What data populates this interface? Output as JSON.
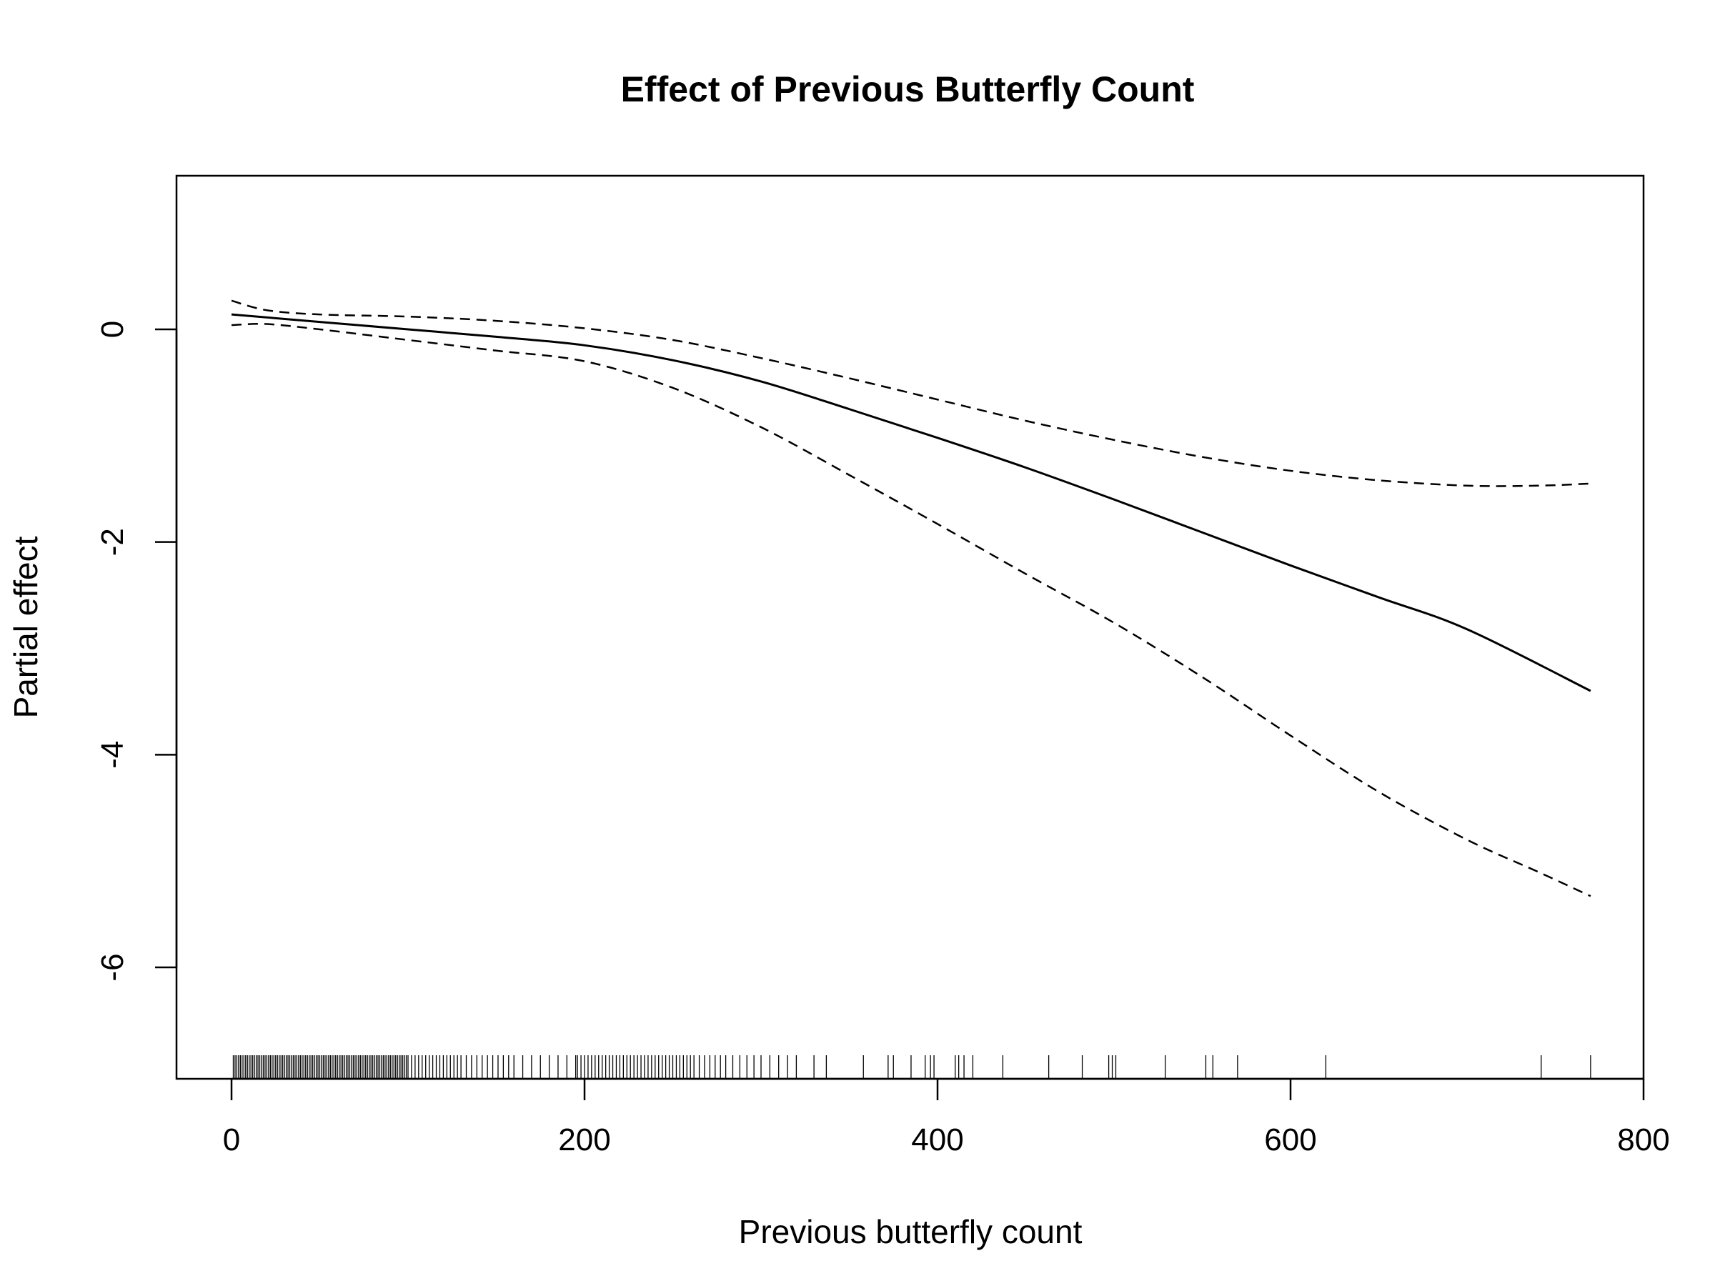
{
  "chart_data": {
    "type": "line",
    "title": "Effect of Previous Butterfly Count",
    "xlabel": "Previous butterfly count",
    "ylabel": "Partial effect",
    "xlim": [
      -30,
      800
    ],
    "ylim": [
      -7,
      1.3
    ],
    "xticks": [
      0,
      200,
      400,
      600,
      800
    ],
    "yticks": [
      0,
      -2,
      -4,
      -6
    ],
    "grid": false,
    "series": [
      {
        "role": "estimate",
        "style": "solid",
        "x": [
          0,
          50,
          100,
          150,
          200,
          250,
          300,
          350,
          400,
          450,
          500,
          550,
          600,
          650,
          700,
          770
        ],
        "y": [
          0.14,
          0.07,
          0.0,
          -0.07,
          -0.15,
          -0.29,
          -0.49,
          -0.75,
          -1.02,
          -1.3,
          -1.6,
          -1.91,
          -2.22,
          -2.52,
          -2.82,
          -3.4
        ]
      },
      {
        "role": "upper bound",
        "style": "dashed",
        "x": [
          0,
          20,
          50,
          100,
          150,
          200,
          250,
          300,
          350,
          400,
          450,
          500,
          550,
          600,
          650,
          700,
          740,
          770
        ],
        "y": [
          0.27,
          0.18,
          0.14,
          0.12,
          0.08,
          0.01,
          -0.1,
          -0.27,
          -0.46,
          -0.66,
          -0.86,
          -1.04,
          -1.2,
          -1.33,
          -1.42,
          -1.47,
          -1.47,
          -1.45
        ]
      },
      {
        "role": "lower bound",
        "style": "dashed",
        "x": [
          0,
          20,
          50,
          100,
          150,
          200,
          250,
          300,
          350,
          400,
          450,
          500,
          550,
          600,
          650,
          700,
          740,
          770
        ],
        "y": [
          0.04,
          0.05,
          0.0,
          -0.1,
          -0.2,
          -0.3,
          -0.55,
          -0.92,
          -1.37,
          -1.83,
          -2.3,
          -2.76,
          -3.27,
          -3.82,
          -4.35,
          -4.8,
          -5.1,
          -5.33
        ]
      }
    ],
    "rug_x": [
      1,
      2,
      3,
      4,
      5,
      6,
      7,
      8,
      9,
      10,
      11,
      12,
      13,
      14,
      15,
      16,
      17,
      18,
      19,
      20,
      21,
      22,
      23,
      24,
      25,
      26,
      27,
      28,
      29,
      30,
      31,
      32,
      33,
      34,
      35,
      36,
      37,
      38,
      39,
      40,
      41,
      42,
      43,
      44,
      45,
      46,
      47,
      48,
      49,
      50,
      51,
      52,
      53,
      54,
      55,
      56,
      57,
      58,
      59,
      60,
      61,
      62,
      63,
      64,
      65,
      66,
      67,
      68,
      69,
      70,
      71,
      72,
      73,
      74,
      75,
      76,
      77,
      78,
      79,
      80,
      81,
      82,
      83,
      84,
      85,
      86,
      87,
      88,
      89,
      90,
      91,
      92,
      93,
      94,
      95,
      96,
      97,
      98,
      99,
      100,
      102,
      104,
      106,
      108,
      110,
      112,
      114,
      116,
      118,
      120,
      122,
      124,
      126,
      128,
      130,
      133,
      136,
      139,
      142,
      145,
      148,
      151,
      154,
      157,
      160,
      165,
      170,
      175,
      180,
      185,
      190,
      195,
      196,
      198,
      200,
      202,
      204,
      206,
      208,
      210,
      212,
      214,
      216,
      218,
      220,
      222,
      224,
      226,
      228,
      230,
      232,
      234,
      236,
      238,
      240,
      242,
      244,
      246,
      248,
      250,
      252,
      254,
      256,
      258,
      260,
      262,
      265,
      268,
      271,
      274,
      277,
      280,
      284,
      288,
      292,
      296,
      300,
      305,
      310,
      315,
      320,
      330,
      337,
      358,
      372,
      375,
      385,
      393,
      396,
      398,
      410,
      412,
      415,
      420,
      437,
      463,
      482,
      497,
      499,
      501,
      529,
      552,
      556,
      570,
      620,
      742,
      770
    ]
  }
}
